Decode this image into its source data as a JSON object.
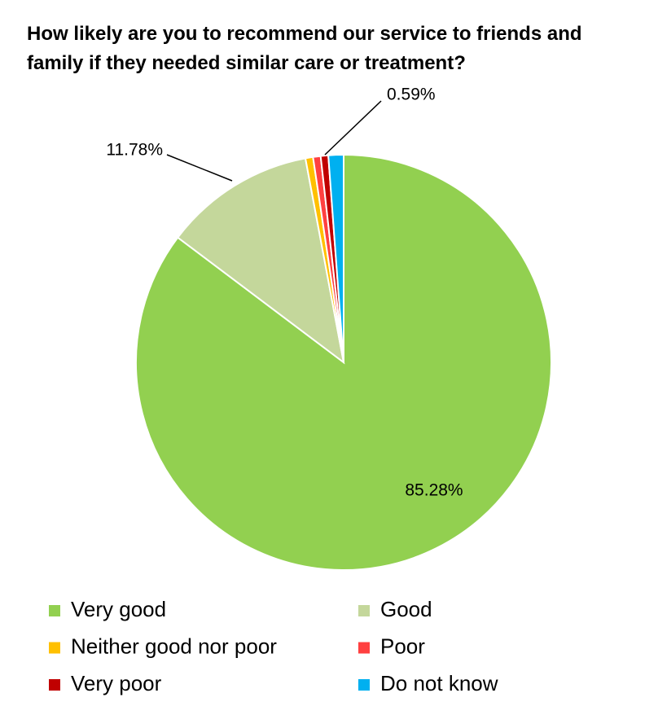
{
  "chart_data": {
    "type": "pie",
    "title": "How likely are you to recommend our service to friends and family if they needed similar care or treatment?",
    "categories": [
      "Very good",
      "Good",
      "Neither good nor poor",
      "Poor",
      "Very poor",
      "Do not know"
    ],
    "values": [
      85.28,
      11.78,
      0.59,
      0.59,
      0.59,
      1.18
    ],
    "value_labels": [
      "85.28%",
      "11.78%",
      null,
      null,
      "0.59%",
      null
    ],
    "colors": [
      "#92d050",
      "#c4d79b",
      "#ffc000",
      "#ff4040",
      "#c00000",
      "#00b0f0"
    ],
    "legend": "bottom"
  }
}
